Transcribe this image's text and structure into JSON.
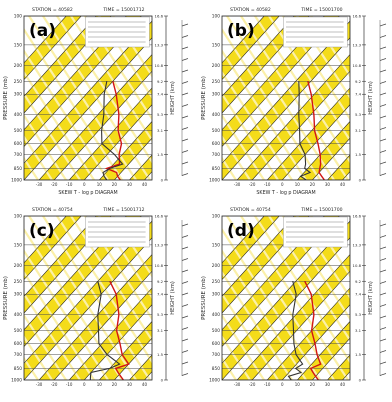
{
  "colors": {
    "background": "#ffffff",
    "yellow": "#f4dc1a",
    "hatch_light": "#fbf0a8",
    "grid": "#4a4a4a",
    "isotherm": "#1a1a1a",
    "temperature_profile": "#d21414",
    "dewpoint_profile": "#333333",
    "text": "#2a2a2a"
  },
  "chart_data": [
    {
      "type": "line",
      "panel_label": "(a)",
      "station_text": "STATION = 40582",
      "time_text": "TIME = 15001712",
      "ylabel": "PRESSURE (mb)",
      "right_axis_label": "HEIGHT (km)",
      "xlabel": "SKEW T - log p DIAGRAM",
      "y_ticks": [
        100,
        150,
        200,
        250,
        300,
        400,
        500,
        600,
        700,
        850,
        1000
      ],
      "height_ticks": [
        16.6,
        13.3,
        10.8,
        9.2,
        7.4,
        5.3,
        3.1,
        1.5,
        0
      ],
      "x_ticks": [
        -30,
        -20,
        -10,
        0,
        10,
        20,
        30,
        40
      ],
      "x_range": [
        -40,
        45
      ],
      "y_range": [
        1000,
        100
      ],
      "y_scale": "log",
      "series": [
        {
          "x": [
            24,
            20,
            17,
            8,
            14,
            8,
            3,
            -7,
            -16,
            -30,
            -40
          ],
          "y": [
            1000,
            950,
            900,
            850,
            800,
            700,
            600,
            500,
            400,
            300,
            250
          ]
        },
        {
          "x": [
            15,
            11,
            8,
            10,
            16,
            5,
            -10,
            -18,
            -26,
            -38,
            -44
          ],
          "y": [
            1000,
            950,
            900,
            850,
            800,
            700,
            600,
            500,
            400,
            300,
            250
          ]
        }
      ]
    },
    {
      "type": "line",
      "panel_label": "(b)",
      "station_text": "STATION = 40582",
      "time_text": "TIME = 15001700",
      "ylabel": "PRESSURE (mb)",
      "right_axis_label": "HEIGHT (km)",
      "xlabel": "SKEW T - log p DIAGRAM",
      "y_ticks": [
        100,
        150,
        200,
        250,
        300,
        400,
        500,
        600,
        700,
        850,
        1000
      ],
      "height_ticks": [
        16.6,
        13.3,
        10.8,
        9.2,
        7.4,
        5.3,
        3.1,
        1.5,
        0
      ],
      "x_ticks": [
        -30,
        -20,
        -10,
        0,
        10,
        20,
        30,
        40
      ],
      "x_range": [
        -40,
        45
      ],
      "y_range": [
        1000,
        100
      ],
      "y_scale": "log",
      "series": [
        {
          "x": [
            28,
            24,
            20,
            18,
            16,
            10,
            2,
            -8,
            -18,
            -32,
            -42
          ],
          "y": [
            1000,
            950,
            900,
            850,
            800,
            700,
            600,
            500,
            400,
            300,
            250
          ]
        },
        {
          "x": [
            16,
            10,
            14,
            8,
            6,
            0,
            -10,
            -18,
            -28,
            -40,
            -48
          ],
          "y": [
            1000,
            950,
            900,
            850,
            800,
            700,
            600,
            500,
            400,
            300,
            250
          ]
        }
      ]
    },
    {
      "type": "line",
      "panel_label": "(c)",
      "station_text": "STATION = 40754",
      "time_text": "TIME = 15001712",
      "ylabel": "PRESSURE (mb)",
      "right_axis_label": "HEIGHT (km)",
      "xlabel": "",
      "y_ticks": [
        100,
        150,
        200,
        250,
        300,
        400,
        500,
        600,
        700,
        850,
        1000
      ],
      "height_ticks": [
        16.6,
        13.3,
        10.8,
        9.2,
        7.4,
        5.3,
        3.1,
        1.5,
        0
      ],
      "x_ticks": [
        -30,
        -20,
        -10,
        0,
        10,
        20,
        30,
        40
      ],
      "x_range": [
        -40,
        45
      ],
      "y_range": [
        1000,
        100
      ],
      "y_scale": "log",
      "series": [
        {
          "x": [
            26,
            22,
            18,
            14,
            20,
            10,
            2,
            -8,
            -16,
            -30,
            -42
          ],
          "y": [
            1000,
            950,
            900,
            850,
            800,
            700,
            600,
            500,
            400,
            300,
            250
          ]
        },
        {
          "x": [
            4,
            2,
            0,
            10,
            14,
            0,
            -12,
            -20,
            -30,
            -40,
            -50
          ],
          "y": [
            1000,
            950,
            900,
            850,
            800,
            700,
            600,
            500,
            400,
            300,
            250
          ]
        }
      ]
    },
    {
      "type": "line",
      "panel_label": "(d)",
      "station_text": "STATION = 40754",
      "time_text": "TIME = 15001700",
      "ylabel": "PRESSURE (mb)",
      "right_axis_label": "HEIGHT (km)",
      "xlabel": "",
      "y_ticks": [
        100,
        150,
        200,
        250,
        300,
        400,
        500,
        600,
        700,
        850,
        1000
      ],
      "height_ticks": [
        16.6,
        13.3,
        10.8,
        9.2,
        7.4,
        5.3,
        3.1,
        1.5,
        0
      ],
      "x_ticks": [
        -30,
        -20,
        -10,
        0,
        10,
        20,
        30,
        40
      ],
      "x_range": [
        -40,
        45
      ],
      "y_range": [
        1000,
        100
      ],
      "y_scale": "log",
      "series": [
        {
          "x": [
            24,
            20,
            16,
            12,
            16,
            8,
            0,
            -10,
            -18,
            -32,
            -44
          ],
          "y": [
            1000,
            950,
            900,
            850,
            800,
            700,
            600,
            500,
            400,
            300,
            250
          ]
        },
        {
          "x": [
            6,
            2,
            8,
            2,
            4,
            -6,
            -14,
            -22,
            -32,
            -42,
            -52
          ],
          "y": [
            1000,
            950,
            900,
            850,
            800,
            700,
            600,
            500,
            400,
            300,
            250
          ]
        }
      ]
    }
  ]
}
